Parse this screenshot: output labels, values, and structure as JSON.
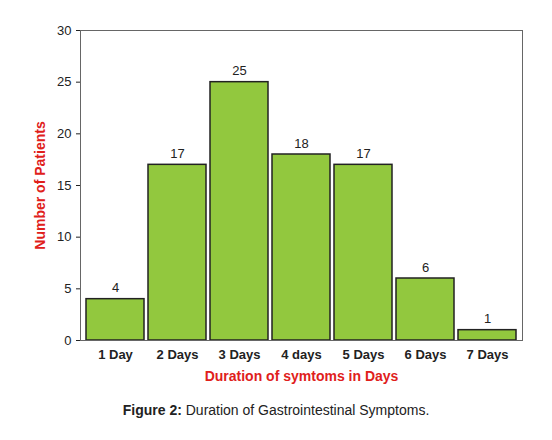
{
  "chart_data": {
    "type": "bar",
    "title": "Figure 2: Duration of Gastrointestinal Symptoms.",
    "x_label": "Duration of symtoms in Days",
    "y_label": "Number of Patients",
    "categories": [
      "1 Day",
      "2 Days",
      "3 Days",
      "4 days",
      "5 Days",
      "6 Days",
      "7 Days"
    ],
    "values": [
      4,
      17,
      25,
      18,
      17,
      6,
      1
    ],
    "color": "#92c83e",
    "ylim": [
      0,
      30
    ],
    "yticks": [
      0,
      5,
      10,
      15,
      20,
      25,
      30
    ],
    "grid": false,
    "data_labels": true
  }
}
